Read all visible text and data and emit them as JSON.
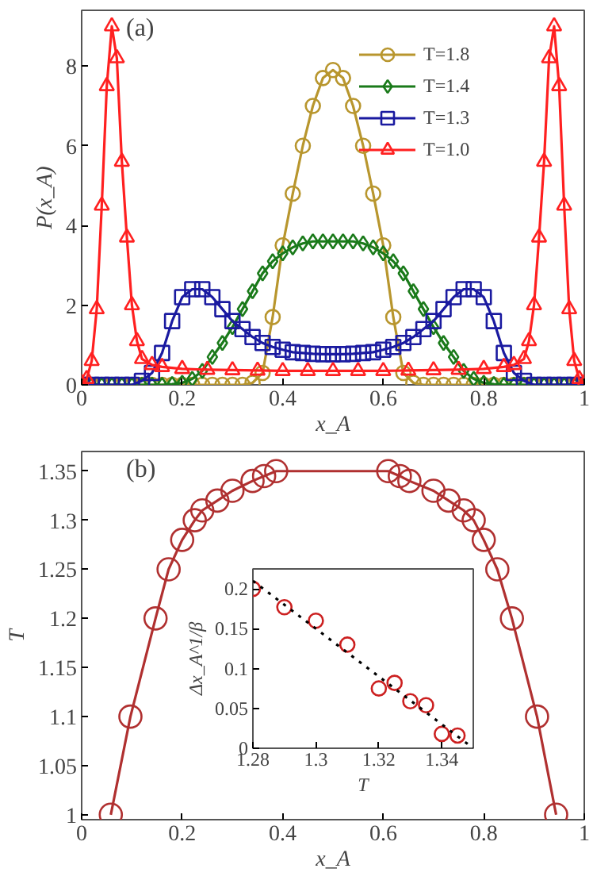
{
  "chart_data": [
    {
      "type": "line",
      "xlabel": "x_A",
      "ylabel": "P(x_A)",
      "annotations": [
        "(a)"
      ],
      "xlim": [
        0,
        1
      ],
      "ylim": [
        0,
        9.4
      ],
      "xticks": [
        0,
        0.2,
        0.4,
        0.6,
        0.8,
        1
      ],
      "yticks": [
        0,
        2,
        4,
        6,
        8
      ],
      "legend": "top right",
      "series": [
        {
          "name": "T=1.8",
          "color": "#b8962e",
          "marker": "circle",
          "x": [
            0,
            0.02,
            0.04,
            0.06,
            0.08,
            0.1,
            0.12,
            0.14,
            0.16,
            0.18,
            0.2,
            0.22,
            0.24,
            0.26,
            0.28,
            0.3,
            0.32,
            0.34,
            0.36,
            0.38,
            0.4,
            0.42,
            0.44,
            0.46,
            0.48,
            0.5,
            0.52,
            0.54,
            0.56,
            0.58,
            0.6,
            0.62,
            0.64,
            0.66,
            0.68,
            0.7,
            0.72,
            0.74,
            0.76,
            0.78,
            0.8,
            0.82,
            0.84,
            0.86,
            0.88,
            0.9,
            0.92,
            0.94,
            0.96,
            0.98,
            1
          ],
          "values": [
            0,
            0,
            0,
            0,
            0,
            0,
            0,
            0,
            0,
            0,
            0,
            0,
            0,
            0,
            0,
            0,
            0,
            0.05,
            0.3,
            1.7,
            3.5,
            4.8,
            6.0,
            7.0,
            7.7,
            7.9,
            7.7,
            7.0,
            6.0,
            4.8,
            3.5,
            1.7,
            0.3,
            0.05,
            0,
            0,
            0,
            0,
            0,
            0,
            0,
            0,
            0,
            0,
            0,
            0,
            0,
            0,
            0,
            0,
            0
          ]
        },
        {
          "name": "T=1.4",
          "color": "#1a7a1a",
          "marker": "diamond",
          "x": [
            0,
            0.02,
            0.04,
            0.06,
            0.08,
            0.1,
            0.12,
            0.14,
            0.16,
            0.18,
            0.2,
            0.22,
            0.24,
            0.26,
            0.28,
            0.3,
            0.32,
            0.34,
            0.36,
            0.38,
            0.4,
            0.42,
            0.44,
            0.46,
            0.48,
            0.5,
            0.52,
            0.54,
            0.56,
            0.58,
            0.6,
            0.62,
            0.64,
            0.66,
            0.68,
            0.7,
            0.72,
            0.74,
            0.76,
            0.78,
            0.8,
            0.82,
            0.84,
            0.86,
            0.88,
            0.9,
            0.92,
            0.94,
            0.96,
            0.98,
            1
          ],
          "values": [
            0,
            0,
            0,
            0,
            0,
            0,
            0,
            0,
            0,
            0.02,
            0.05,
            0.15,
            0.35,
            0.7,
            1.05,
            1.45,
            1.9,
            2.35,
            2.8,
            3.1,
            3.3,
            3.45,
            3.55,
            3.6,
            3.6,
            3.6,
            3.6,
            3.6,
            3.55,
            3.45,
            3.3,
            3.1,
            2.8,
            2.35,
            1.9,
            1.45,
            1.05,
            0.7,
            0.35,
            0.15,
            0.05,
            0.02,
            0,
            0,
            0,
            0,
            0,
            0,
            0,
            0,
            0
          ]
        },
        {
          "name": "T=1.3",
          "color": "#1a1aa0",
          "marker": "square",
          "x": [
            0,
            0.02,
            0.04,
            0.06,
            0.08,
            0.1,
            0.12,
            0.14,
            0.16,
            0.18,
            0.2,
            0.22,
            0.24,
            0.26,
            0.28,
            0.3,
            0.32,
            0.34,
            0.36,
            0.38,
            0.4,
            0.42,
            0.44,
            0.46,
            0.48,
            0.5,
            0.52,
            0.54,
            0.56,
            0.58,
            0.6,
            0.62,
            0.64,
            0.66,
            0.68,
            0.7,
            0.72,
            0.74,
            0.76,
            0.78,
            0.8,
            0.82,
            0.84,
            0.86,
            0.88,
            0.9,
            0.92,
            0.94,
            0.96,
            0.98,
            1
          ],
          "values": [
            0,
            0,
            0,
            0,
            0,
            0,
            0.1,
            0.3,
            0.8,
            1.6,
            2.2,
            2.4,
            2.4,
            2.2,
            1.9,
            1.6,
            1.4,
            1.2,
            1.05,
            0.95,
            0.88,
            0.82,
            0.8,
            0.78,
            0.77,
            0.77,
            0.77,
            0.78,
            0.8,
            0.82,
            0.88,
            0.95,
            1.05,
            1.2,
            1.4,
            1.6,
            1.9,
            2.2,
            2.4,
            2.4,
            2.2,
            1.6,
            0.8,
            0.3,
            0.1,
            0,
            0,
            0,
            0,
            0,
            0
          ]
        },
        {
          "name": "T=1.0",
          "color": "#ff2020",
          "marker": "triangle",
          "x": [
            0,
            0.01,
            0.02,
            0.03,
            0.04,
            0.05,
            0.06,
            0.07,
            0.08,
            0.09,
            0.1,
            0.11,
            0.12,
            0.14,
            0.16,
            0.2,
            0.25,
            0.3,
            0.35,
            0.4,
            0.45,
            0.5,
            0.55,
            0.6,
            0.65,
            0.7,
            0.75,
            0.8,
            0.84,
            0.86,
            0.88,
            0.89,
            0.9,
            0.91,
            0.92,
            0.93,
            0.94,
            0.95,
            0.96,
            0.97,
            0.98,
            0.99,
            1
          ],
          "values": [
            0.05,
            0.15,
            0.6,
            1.9,
            4.5,
            7.5,
            9.0,
            8.2,
            5.6,
            3.7,
            2.0,
            1.1,
            0.65,
            0.5,
            0.45,
            0.4,
            0.38,
            0.37,
            0.36,
            0.35,
            0.35,
            0.35,
            0.35,
            0.35,
            0.36,
            0.37,
            0.38,
            0.4,
            0.45,
            0.5,
            0.65,
            1.1,
            2.0,
            3.7,
            5.6,
            8.2,
            9.0,
            7.5,
            4.5,
            1.9,
            0.6,
            0.15,
            0.05
          ]
        }
      ]
    },
    {
      "type": "line",
      "xlabel": "x_A",
      "ylabel": "T",
      "annotations": [
        "(b)"
      ],
      "xlim": [
        0,
        1
      ],
      "ylim": [
        0.995,
        1.37
      ],
      "xticks": [
        0,
        0.2,
        0.4,
        0.6,
        0.8,
        1
      ],
      "yticks": [
        1,
        1.05,
        1.1,
        1.15,
        1.2,
        1.25,
        1.3,
        1.35
      ],
      "series": [
        {
          "color": "#b03030",
          "marker": "circle",
          "x": [
            0.058,
            0.097,
            0.147,
            0.173,
            0.2,
            0.225,
            0.24,
            0.27,
            0.3,
            0.34,
            0.363,
            0.387,
            0.61,
            0.633,
            0.652,
            0.7,
            0.73,
            0.76,
            0.78,
            0.8,
            0.827,
            0.856,
            0.906,
            0.944
          ],
          "values": [
            1.0,
            1.1,
            1.2,
            1.25,
            1.28,
            1.3,
            1.31,
            1.32,
            1.33,
            1.34,
            1.345,
            1.35,
            1.35,
            1.345,
            1.34,
            1.33,
            1.32,
            1.31,
            1.3,
            1.28,
            1.25,
            1.2,
            1.1,
            1.0
          ]
        }
      ]
    },
    {
      "type": "scatter",
      "xlabel": "T",
      "ylabel": "Δx_A^1/β",
      "xlim": [
        1.28,
        1.35
      ],
      "ylim": [
        0,
        0.225
      ],
      "xticks": [
        1.28,
        1.3,
        1.32,
        1.34
      ],
      "yticks": [
        0,
        0.05,
        0.1,
        0.15,
        0.2
      ],
      "series": [
        {
          "color": "#cc2020",
          "marker": "circle",
          "x": [
            1.28,
            1.29,
            1.3,
            1.31,
            1.32,
            1.325,
            1.33,
            1.335,
            1.34,
            1.345
          ],
          "values": [
            0.2,
            0.177,
            0.16,
            0.13,
            0.075,
            0.082,
            0.059,
            0.054,
            0.018,
            0.016
          ]
        },
        {
          "type": "line",
          "color": "#000000",
          "marker": "none",
          "line_style": "dotted",
          "x": [
            1.28,
            1.35
          ],
          "values": [
            0.21,
            0
          ]
        }
      ]
    }
  ]
}
